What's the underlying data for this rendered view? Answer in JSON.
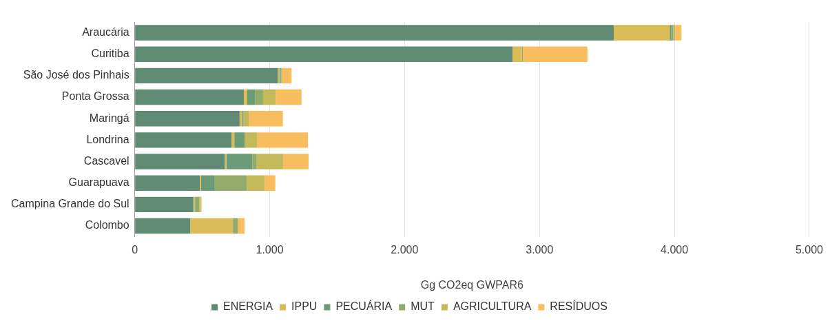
{
  "chart_data": {
    "type": "bar",
    "orientation": "horizontal",
    "stacked": true,
    "xlabel": "Gg CO2eq GWPAR6",
    "categories": [
      "Araucária",
      "Curitiba",
      "São José dos Pinhais",
      "Ponta Grossa",
      "Maringá",
      "Londrina",
      "Cascavel",
      "Guarapuava",
      "Campina Grande do Sul",
      "Colombo"
    ],
    "series": [
      {
        "name": "ENERGIA",
        "color": "#5f8a74",
        "values": [
          3550,
          2800,
          1060,
          808,
          777,
          717,
          667,
          482,
          434,
          411
        ]
      },
      {
        "name": "IPPU",
        "color": "#d9bc55",
        "values": [
          415,
          70,
          12,
          26,
          17,
          21,
          12,
          9,
          9,
          318
        ]
      },
      {
        "name": "PECUÁRIA",
        "color": "#6a9a76",
        "values": [
          12,
          5,
          10,
          57,
          8,
          76,
          192,
          102,
          5,
          12
        ]
      },
      {
        "name": "MUT",
        "color": "#93ab6a",
        "values": [
          15,
          0,
          5,
          60,
          5,
          0,
          33,
          237,
          30,
          22
        ]
      },
      {
        "name": "AGRICULTURA",
        "color": "#c4b95a",
        "values": [
          15,
          0,
          8,
          95,
          41,
          95,
          197,
          133,
          10,
          0
        ]
      },
      {
        "name": "RESÍDUOS",
        "color": "#f7bd5e",
        "values": [
          45,
          480,
          67,
          190,
          250,
          375,
          188,
          79,
          7,
          50
        ]
      }
    ],
    "xlim": [
      0,
      5000
    ],
    "xticks": [
      0,
      {
        "value": 1000,
        "label": "1.000"
      },
      {
        "value": 2000,
        "label": "2.000"
      },
      {
        "value": 3000,
        "label": "3.000"
      },
      {
        "value": 4000,
        "label": "4.000"
      },
      {
        "value": 5000,
        "label": "5.000"
      }
    ],
    "grid": "x",
    "legend": "bottom"
  }
}
